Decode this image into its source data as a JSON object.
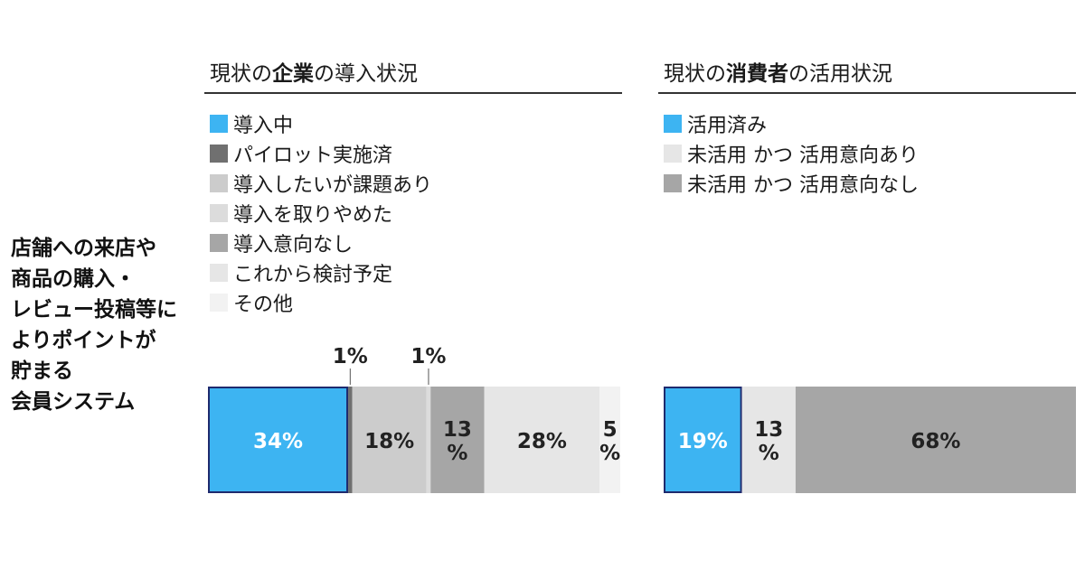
{
  "row_label": [
    "店舗への来店や",
    "商品の購入・",
    "レビュー投稿等に",
    "よりポイントが",
    "貯まる",
    "会員システム"
  ],
  "chart_data": [
    {
      "type": "bar",
      "orientation": "horizontal-stacked",
      "title": {
        "prefix": "現状の",
        "bold": "企業",
        "suffix": "の導入状況"
      },
      "series": [
        {
          "name": "導入中",
          "value": 34,
          "label": "34%",
          "color": "#3db4f2"
        },
        {
          "name": "パイロット実施済",
          "value": 1,
          "label": "1%",
          "color": "#707070"
        },
        {
          "name": "導入したいが課題あり",
          "value": 18,
          "label": "18%",
          "color": "#cccccc"
        },
        {
          "name": "導入を取りやめた",
          "value": 1,
          "label": "1%",
          "color": "#dcdcdc"
        },
        {
          "name": "導入意向なし",
          "value": 13,
          "label": "13%",
          "color": "#a6a6a6"
        },
        {
          "name": "これから検討予定",
          "value": 28,
          "label": "28%",
          "color": "#e6e6e6"
        },
        {
          "name": "その他",
          "value": 5,
          "label": "5%",
          "color": "#f2f2f2"
        }
      ]
    },
    {
      "type": "bar",
      "orientation": "horizontal-stacked",
      "title": {
        "prefix": "現状の",
        "bold": "消費者",
        "suffix": "の活用状況"
      },
      "series": [
        {
          "name": "活用済み",
          "value": 19,
          "label": "19%",
          "color": "#3db4f2"
        },
        {
          "name": "未活用 かつ 活用意向あり",
          "value": 13,
          "label": "13%",
          "color": "#e6e6e6"
        },
        {
          "name": "未活用 かつ 活用意向なし",
          "value": 68,
          "label": "68%",
          "color": "#a6a6a6"
        }
      ]
    }
  ]
}
